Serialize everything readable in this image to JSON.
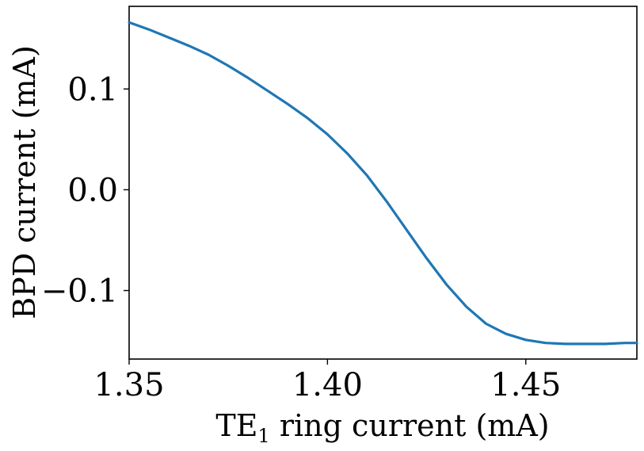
{
  "chart_data": {
    "type": "line",
    "xlabel_main": "TE",
    "xlabel_subscript": "1",
    "xlabel_rest": " ring current (mA)",
    "ylabel": "BPD current (mA)",
    "xlim": [
      1.35,
      1.478
    ],
    "ylim": [
      -0.168,
      0.182
    ],
    "xticks": [
      {
        "value": 1.35,
        "label": "1.35"
      },
      {
        "value": 1.4,
        "label": "1.40"
      },
      {
        "value": 1.45,
        "label": "1.45"
      }
    ],
    "yticks": [
      {
        "value": 0.1,
        "label": "0.1"
      },
      {
        "value": 0.0,
        "label": "0.0"
      },
      {
        "value": -0.1,
        "label": "−0.1"
      }
    ],
    "grid": false,
    "series": [
      {
        "color": "#1f77b4",
        "x": [
          1.35,
          1.355,
          1.36,
          1.365,
          1.37,
          1.375,
          1.38,
          1.385,
          1.39,
          1.395,
          1.4,
          1.405,
          1.41,
          1.415,
          1.42,
          1.425,
          1.43,
          1.435,
          1.44,
          1.445,
          1.45,
          1.455,
          1.46,
          1.465,
          1.47,
          1.475,
          1.478
        ],
        "y": [
          0.166,
          0.159,
          0.151,
          0.143,
          0.134,
          0.123,
          0.111,
          0.098,
          0.085,
          0.071,
          0.055,
          0.036,
          0.014,
          -0.012,
          -0.04,
          -0.068,
          -0.094,
          -0.116,
          -0.133,
          -0.143,
          -0.149,
          -0.152,
          -0.153,
          -0.153,
          -0.153,
          -0.152,
          -0.152
        ]
      }
    ]
  }
}
